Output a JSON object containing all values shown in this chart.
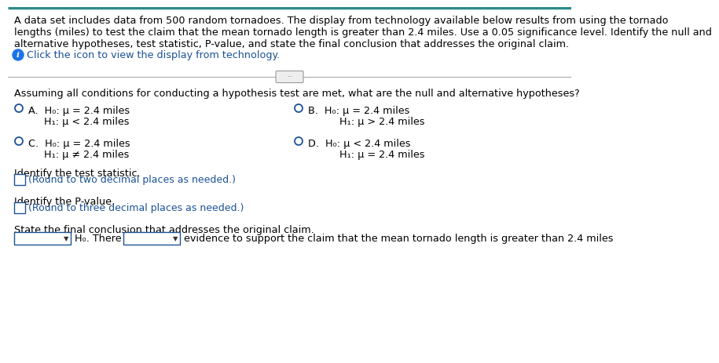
{
  "bg_color": "#ffffff",
  "top_border_color": "#2d8a8a",
  "text_color": "#000000",
  "blue_text_color": "#1a4f8a",
  "link_color": "#1a5296",
  "radio_color": "#1a5296",
  "box_border_color": "#1a5296",
  "info_icon_color": "#1a73e8",
  "header_line1": "A data set includes data from 500 random tornadoes. The display from technology available below results from using the tornado",
  "header_line2": "lengths (miles) to test the claim that the mean tornado length is greater than 2.4 miles. Use a 0.05 significance level. Identify the null and",
  "header_line3": "alternative hypotheses, test statistic, P-value, and state the final conclusion that addresses the original claim.",
  "click_text": "Click the icon to view the display from technology.",
  "question_text": "Assuming all conditions for conducting a hypothesis test are met, what are the null and alternative hypotheses?",
  "optA1": "A.  H₀: μ = 2.4 miles",
  "optA2": "     H₁: μ < 2.4 miles",
  "optB1": "B.  H₀: μ = 2.4 miles",
  "optB2": "          H₁: μ > 2.4 miles",
  "optC1": "C.  H₀: μ = 2.4 miles",
  "optC2": "     H₁: μ ≠ 2.4 miles",
  "optD1": "D.  H₀: μ < 2.4 miles",
  "optD2": "          H₁: μ = 2.4 miles",
  "test_stat_label": "Identify the test statistic.",
  "test_stat_hint": "(Round to two decimal places as needed.)",
  "pvalue_label": "Identify the P-value.",
  "pvalue_hint": "(Round to three decimal places as needed.)",
  "conclusion_label": "State the final conclusion that addresses the original claim.",
  "h0_text": "H₀. There is",
  "conclusion_tail": "evidence to support the claim that the mean tornado length is greater than 2.4 miles",
  "header_fs": 9.2,
  "body_fs": 9.2,
  "small_fs": 9.0
}
